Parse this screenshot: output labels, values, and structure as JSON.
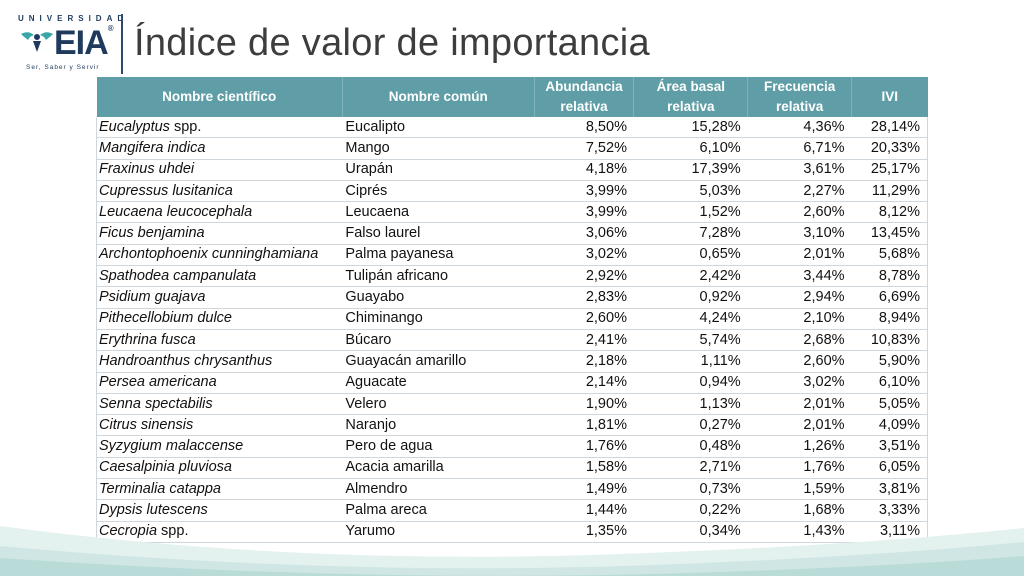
{
  "logo": {
    "top_text": "UNIVERSIDAD",
    "brand_text": "EIA",
    "registered": "®",
    "tagline": "Ser, Saber y Servir"
  },
  "title": "Índice de valor de importancia",
  "table": {
    "headers": [
      "Nombre científico",
      "Nombre común",
      "Abundancia relativa",
      "Área basal relativa",
      "Frecuencia relativa",
      "IVI"
    ],
    "rows": [
      {
        "sci_main": "Eucalyptus",
        "sci_suffix": " spp.",
        "common": "Eucalipto",
        "abundancia": "8,50%",
        "area": "15,28%",
        "frecuencia": "4,36%",
        "ivi": "28,14%"
      },
      {
        "sci_main": "Mangifera indica",
        "sci_suffix": "",
        "common": "Mango",
        "abundancia": "7,52%",
        "area": "6,10%",
        "frecuencia": "6,71%",
        "ivi": "20,33%"
      },
      {
        "sci_main": "Fraxinus uhdei",
        "sci_suffix": "",
        "common": "Urapán",
        "abundancia": "4,18%",
        "area": "17,39%",
        "frecuencia": "3,61%",
        "ivi": "25,17%"
      },
      {
        "sci_main": "Cupressus lusitanica",
        "sci_suffix": "",
        "common": "Ciprés",
        "abundancia": "3,99%",
        "area": "5,03%",
        "frecuencia": "2,27%",
        "ivi": "11,29%"
      },
      {
        "sci_main": "Leucaena leucocephala",
        "sci_suffix": "",
        "common": "Leucaena",
        "abundancia": "3,99%",
        "area": "1,52%",
        "frecuencia": "2,60%",
        "ivi": "8,12%"
      },
      {
        "sci_main": "Ficus benjamina",
        "sci_suffix": "",
        "common": "Falso laurel",
        "abundancia": "3,06%",
        "area": "7,28%",
        "frecuencia": "3,10%",
        "ivi": "13,45%"
      },
      {
        "sci_main": "Archontophoenix cunninghamiana",
        "sci_suffix": "",
        "common": "Palma payanesa",
        "abundancia": "3,02%",
        "area": "0,65%",
        "frecuencia": "2,01%",
        "ivi": "5,68%"
      },
      {
        "sci_main": "Spathodea campanulata",
        "sci_suffix": "",
        "common": "Tulipán africano",
        "abundancia": "2,92%",
        "area": "2,42%",
        "frecuencia": "3,44%",
        "ivi": "8,78%"
      },
      {
        "sci_main": "Psidium guajava",
        "sci_suffix": "",
        "common": "Guayabo",
        "abundancia": "2,83%",
        "area": "0,92%",
        "frecuencia": "2,94%",
        "ivi": "6,69%"
      },
      {
        "sci_main": "Pithecellobium dulce",
        "sci_suffix": "",
        "common": "Chiminango",
        "abundancia": "2,60%",
        "area": "4,24%",
        "frecuencia": "2,10%",
        "ivi": "8,94%"
      },
      {
        "sci_main": "Erythrina fusca",
        "sci_suffix": "",
        "common": "Búcaro",
        "abundancia": "2,41%",
        "area": "5,74%",
        "frecuencia": "2,68%",
        "ivi": "10,83%"
      },
      {
        "sci_main": "Handroanthus chrysanthus",
        "sci_suffix": "",
        "common": "Guayacán amarillo",
        "abundancia": "2,18%",
        "area": "1,11%",
        "frecuencia": "2,60%",
        "ivi": "5,90%"
      },
      {
        "sci_main": "Persea americana",
        "sci_suffix": "",
        "common": "Aguacate",
        "abundancia": "2,14%",
        "area": "0,94%",
        "frecuencia": "3,02%",
        "ivi": "6,10%"
      },
      {
        "sci_main": "Senna spectabilis",
        "sci_suffix": "",
        "common": "Velero",
        "abundancia": "1,90%",
        "area": "1,13%",
        "frecuencia": "2,01%",
        "ivi": "5,05%"
      },
      {
        "sci_main": "Citrus sinensis",
        "sci_suffix": "",
        "common": "Naranjo",
        "abundancia": "1,81%",
        "area": "0,27%",
        "frecuencia": "2,01%",
        "ivi": "4,09%"
      },
      {
        "sci_main": "Syzygium malaccense",
        "sci_suffix": "",
        "common": "Pero de agua",
        "abundancia": "1,76%",
        "area": "0,48%",
        "frecuencia": "1,26%",
        "ivi": "3,51%"
      },
      {
        "sci_main": "Caesalpinia pluviosa",
        "sci_suffix": "",
        "common": "Acacia amarilla",
        "abundancia": "1,58%",
        "area": "2,71%",
        "frecuencia": "1,76%",
        "ivi": "6,05%"
      },
      {
        "sci_main": "Terminalia catappa",
        "sci_suffix": "",
        "common": "Almendro",
        "abundancia": "1,49%",
        "area": "0,73%",
        "frecuencia": "1,59%",
        "ivi": "3,81%"
      },
      {
        "sci_main": "Dypsis lutescens",
        "sci_suffix": "",
        "common": "Palma areca",
        "abundancia": "1,44%",
        "area": "0,22%",
        "frecuencia": "1,68%",
        "ivi": "3,33%"
      },
      {
        "sci_main": "Cecropia",
        "sci_suffix": " spp.",
        "common": "Yarumo",
        "abundancia": "1,35%",
        "area": "0,34%",
        "frecuencia": "1,43%",
        "ivi": "3,11%"
      }
    ]
  },
  "colors": {
    "header_bg": "#5f9ea6",
    "brand_navy": "#1f3a5c",
    "brand_teal": "#3aa7a7",
    "wave": "#cfe6e4"
  }
}
